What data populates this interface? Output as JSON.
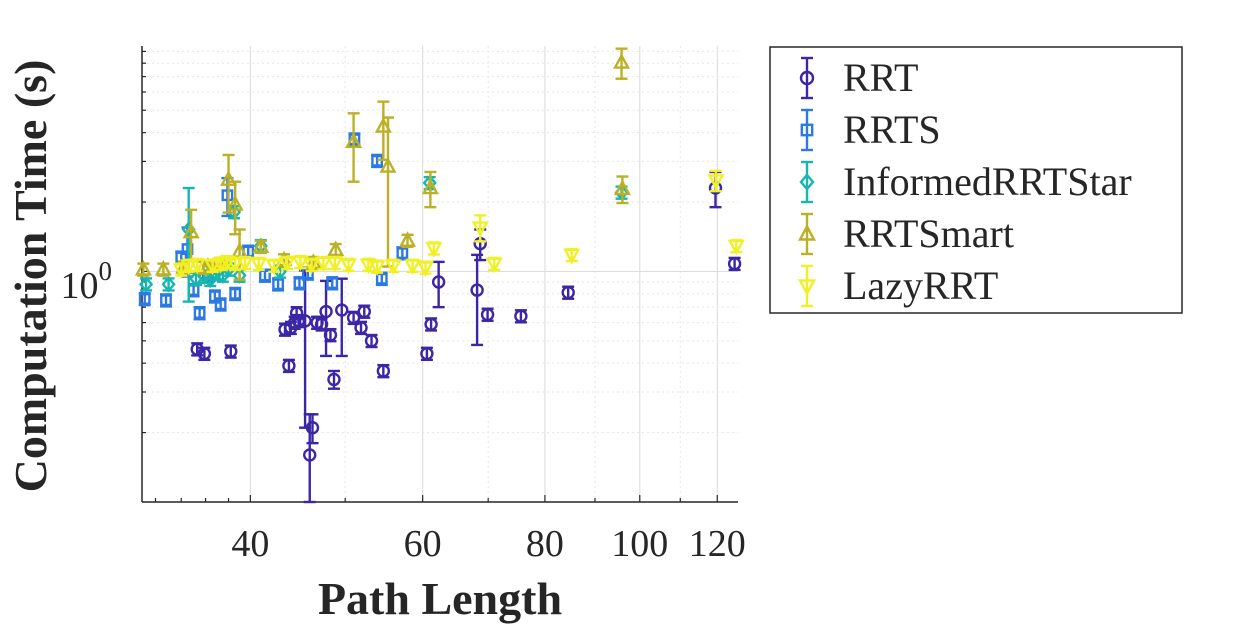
{
  "chart_data": {
    "type": "scatter",
    "xlabel": "Path Length",
    "ylabel": "Computation Time (s)",
    "x_scale": "log",
    "y_scale": "log",
    "xlim": [
      31,
      126
    ],
    "ylim": [
      0.1,
      9.5
    ],
    "x_ticks": [
      40,
      60,
      80,
      100,
      120
    ],
    "x_tick_labels": [
      "40",
      "60",
      "80",
      "100",
      "120"
    ],
    "y_tick_label": {
      "base": "10",
      "exponent": "0",
      "value": 1
    },
    "grid": true,
    "legend_position": "outside-right",
    "series": [
      {
        "name": "RRT",
        "color": "#3b27a6",
        "marker": "circle",
        "points": [
          {
            "x": 35.3,
            "y": 0.46
          },
          {
            "x": 35.9,
            "y": 0.44
          },
          {
            "x": 38.2,
            "y": 0.45
          },
          {
            "x": 43.4,
            "y": 0.56
          },
          {
            "x": 43.8,
            "y": 0.39
          },
          {
            "x": 44.0,
            "y": 0.57
          },
          {
            "x": 44.4,
            "y": 0.6
          },
          {
            "x": 44.6,
            "y": 0.66
          },
          {
            "x": 44.8,
            "y": 0.61
          },
          {
            "x": 45.5,
            "y": 0.61,
            "err": 0.4
          },
          {
            "x": 46.0,
            "y": 0.16,
            "err": 0.08
          },
          {
            "x": 46.3,
            "y": 0.21,
            "err": 0.03
          },
          {
            "x": 46.8,
            "y": 0.6
          },
          {
            "x": 47.3,
            "y": 0.59
          },
          {
            "x": 47.8,
            "y": 0.67,
            "err": 0.24
          },
          {
            "x": 48.3,
            "y": 0.53
          },
          {
            "x": 48.7,
            "y": 0.34,
            "err": 0.03
          },
          {
            "x": 49.6,
            "y": 0.68,
            "err": 0.25
          },
          {
            "x": 51.0,
            "y": 0.63
          },
          {
            "x": 51.9,
            "y": 0.57
          },
          {
            "x": 52.3,
            "y": 0.67
          },
          {
            "x": 53.2,
            "y": 0.5
          },
          {
            "x": 54.7,
            "y": 0.37
          },
          {
            "x": 60.6,
            "y": 0.44
          },
          {
            "x": 61.2,
            "y": 0.59
          },
          {
            "x": 62.3,
            "y": 0.9,
            "err": 0.2
          },
          {
            "x": 68.2,
            "y": 0.83,
            "err": 0.35
          },
          {
            "x": 68.7,
            "y": 1.32,
            "err": 0.2
          },
          {
            "x": 69.9,
            "y": 0.65
          },
          {
            "x": 75.6,
            "y": 0.64
          },
          {
            "x": 84.5,
            "y": 0.81
          },
          {
            "x": 119.5,
            "y": 2.3,
            "err": 0.4
          },
          {
            "x": 125.0,
            "y": 1.08
          }
        ]
      },
      {
        "name": "RRTS",
        "color": "#2c79e4",
        "marker": "square",
        "points": [
          {
            "x": 31.2,
            "y": 0.76
          },
          {
            "x": 32.8,
            "y": 0.75
          },
          {
            "x": 34.0,
            "y": 1.15
          },
          {
            "x": 34.5,
            "y": 1.25,
            "err": 0.3
          },
          {
            "x": 35.0,
            "y": 0.83
          },
          {
            "x": 35.5,
            "y": 0.66
          },
          {
            "x": 36.2,
            "y": 0.95
          },
          {
            "x": 36.8,
            "y": 0.78
          },
          {
            "x": 37.3,
            "y": 0.72
          },
          {
            "x": 37.9,
            "y": 2.14,
            "err": 0.4
          },
          {
            "x": 38.6,
            "y": 0.8
          },
          {
            "x": 39.8,
            "y": 1.22
          },
          {
            "x": 41.4,
            "y": 0.96
          },
          {
            "x": 42.7,
            "y": 0.88
          },
          {
            "x": 44.9,
            "y": 0.89
          },
          {
            "x": 45.8,
            "y": 0.98
          },
          {
            "x": 48.5,
            "y": 0.89
          },
          {
            "x": 51.1,
            "y": 3.74
          },
          {
            "x": 53.9,
            "y": 3.02
          },
          {
            "x": 54.5,
            "y": 0.93
          },
          {
            "x": 57.2,
            "y": 1.2
          }
        ]
      },
      {
        "name": "InformedRRTStar",
        "color": "#18b6b2",
        "marker": "diamond",
        "points": [
          {
            "x": 31.3,
            "y": 0.88
          },
          {
            "x": 33.0,
            "y": 0.88
          },
          {
            "x": 34.6,
            "y": 1.52,
            "err": 0.78
          },
          {
            "x": 35.2,
            "y": 0.93
          },
          {
            "x": 35.9,
            "y": 0.95
          },
          {
            "x": 36.4,
            "y": 0.92
          },
          {
            "x": 36.9,
            "y": 0.98
          },
          {
            "x": 37.5,
            "y": 0.96
          },
          {
            "x": 38.0,
            "y": 1.02
          },
          {
            "x": 38.5,
            "y": 1.81
          },
          {
            "x": 39.0,
            "y": 0.96
          },
          {
            "x": 41.0,
            "y": 1.29
          },
          {
            "x": 42.9,
            "y": 1.0
          },
          {
            "x": 61.0,
            "y": 2.42
          },
          {
            "x": 95.8,
            "y": 2.2
          }
        ]
      },
      {
        "name": "RRTSmart",
        "color": "#bcb126",
        "marker": "triangle-up",
        "points": [
          {
            "x": 31.1,
            "y": 1.02
          },
          {
            "x": 32.6,
            "y": 1.02
          },
          {
            "x": 34.2,
            "y": 1.04
          },
          {
            "x": 34.8,
            "y": 1.48,
            "err": 0.37
          },
          {
            "x": 35.8,
            "y": 1.04
          },
          {
            "x": 36.2,
            "y": 1.05
          },
          {
            "x": 36.8,
            "y": 1.06
          },
          {
            "x": 37.4,
            "y": 1.08
          },
          {
            "x": 38.0,
            "y": 2.5,
            "err": 0.7
          },
          {
            "x": 38.6,
            "y": 1.95,
            "err": 0.5
          },
          {
            "x": 39.0,
            "y": 1.22,
            "err": 0.3
          },
          {
            "x": 41.0,
            "y": 1.28
          },
          {
            "x": 43.3,
            "y": 1.12
          },
          {
            "x": 46.4,
            "y": 1.09
          },
          {
            "x": 48.9,
            "y": 1.24
          },
          {
            "x": 51.0,
            "y": 3.65,
            "err": 1.2
          },
          {
            "x": 54.7,
            "y": 4.25,
            "err": 1.2
          },
          {
            "x": 55.3,
            "y": 2.85,
            "err": 1.8
          },
          {
            "x": 57.9,
            "y": 1.36
          },
          {
            "x": 61.1,
            "y": 2.3,
            "err": 0.4
          },
          {
            "x": 95.8,
            "y": 8.05,
            "err": 1.2
          },
          {
            "x": 96.0,
            "y": 2.28,
            "err": 0.3
          }
        ]
      },
      {
        "name": "LazyRRT",
        "color": "#f0f025",
        "marker": "triangle-down",
        "points": [
          {
            "x": 34.0,
            "y": 1.02
          },
          {
            "x": 34.6,
            "y": 1.06
          },
          {
            "x": 35.3,
            "y": 1.07
          },
          {
            "x": 36.6,
            "y": 1.06
          },
          {
            "x": 37.3,
            "y": 1.08
          },
          {
            "x": 37.9,
            "y": 1.1
          },
          {
            "x": 38.6,
            "y": 1.08
          },
          {
            "x": 39.5,
            "y": 1.09
          },
          {
            "x": 40.8,
            "y": 1.08
          },
          {
            "x": 42.3,
            "y": 1.06
          },
          {
            "x": 43.6,
            "y": 1.09
          },
          {
            "x": 45.0,
            "y": 1.1
          },
          {
            "x": 46.2,
            "y": 1.07
          },
          {
            "x": 47.5,
            "y": 1.09
          },
          {
            "x": 48.8,
            "y": 1.09
          },
          {
            "x": 50.4,
            "y": 1.07
          },
          {
            "x": 52.8,
            "y": 1.07
          },
          {
            "x": 53.9,
            "y": 1.05
          },
          {
            "x": 56.0,
            "y": 1.06
          },
          {
            "x": 58.6,
            "y": 1.06
          },
          {
            "x": 60.4,
            "y": 1.04
          },
          {
            "x": 61.6,
            "y": 1.26
          },
          {
            "x": 68.7,
            "y": 1.55,
            "err": 0.2
          },
          {
            "x": 71.0,
            "y": 1.08
          },
          {
            "x": 85.2,
            "y": 1.18
          },
          {
            "x": 119.6,
            "y": 2.48,
            "err": 0.25
          },
          {
            "x": 125.5,
            "y": 1.29
          }
        ]
      }
    ]
  }
}
